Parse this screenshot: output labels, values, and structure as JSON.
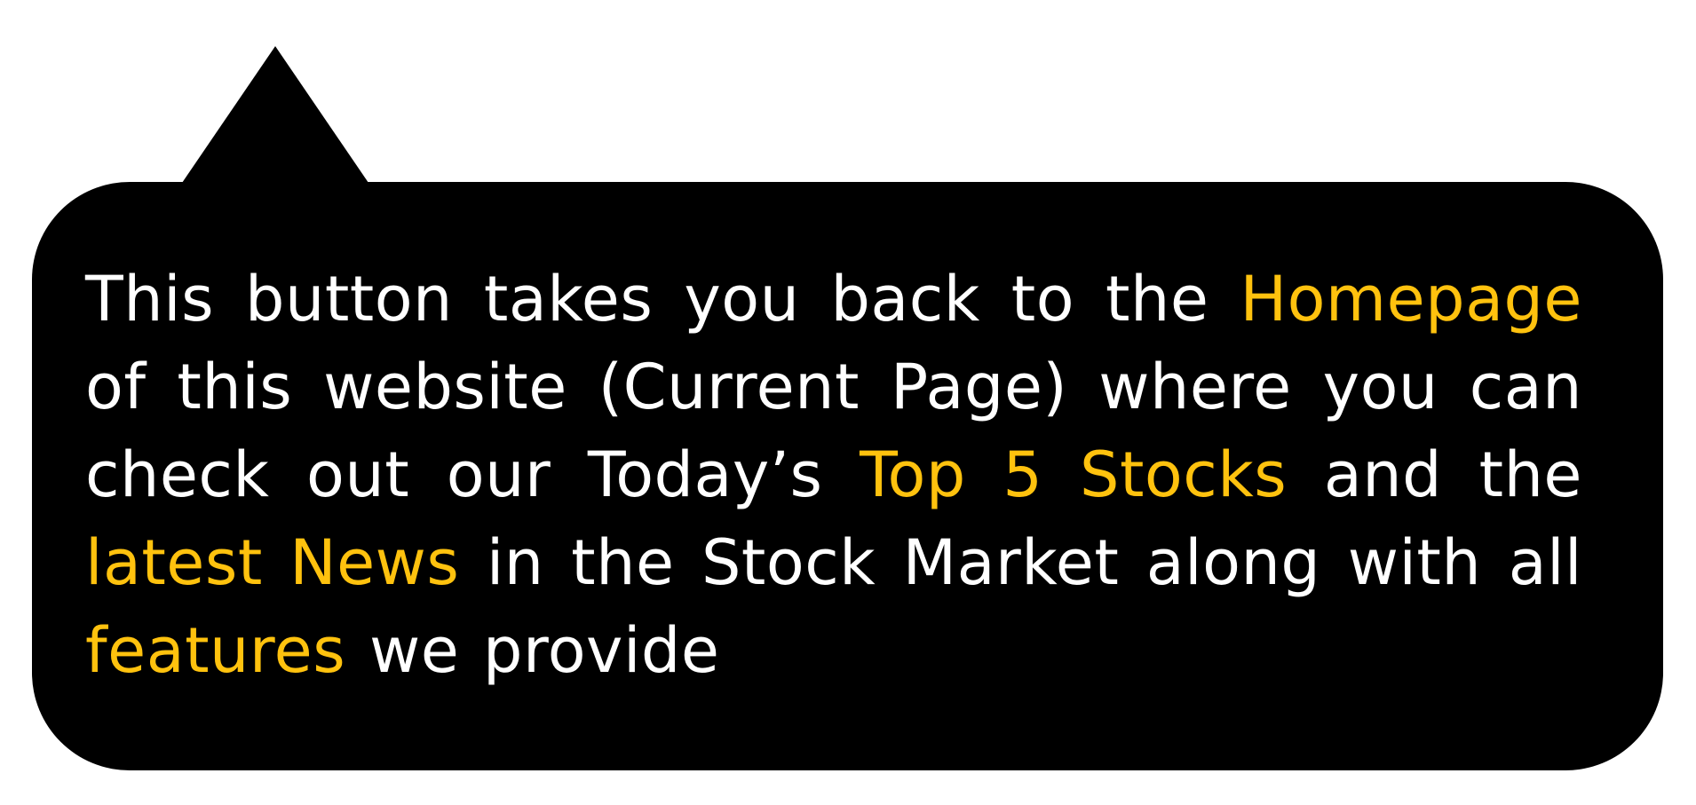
{
  "colors": {
    "bubble_background": "#000000",
    "text": "#ffffff",
    "highlight": "#ffc20e",
    "page_background": "#ffffff"
  },
  "tooltip": {
    "segments": [
      {
        "text": "This button takes you back to the ",
        "highlight": false
      },
      {
        "text": "Homepage",
        "highlight": true
      },
      {
        "text": " of this website (Current Page) where you can check out our Today’s ",
        "highlight": false
      },
      {
        "text": "Top 5 Stocks",
        "highlight": true
      },
      {
        "text": " and the ",
        "highlight": false
      },
      {
        "text": "latest News",
        "highlight": true
      },
      {
        "text": " in the Stock Market along with all ",
        "highlight": false
      },
      {
        "text": "features",
        "highlight": true
      },
      {
        "text": " we provide",
        "highlight": false
      }
    ]
  }
}
